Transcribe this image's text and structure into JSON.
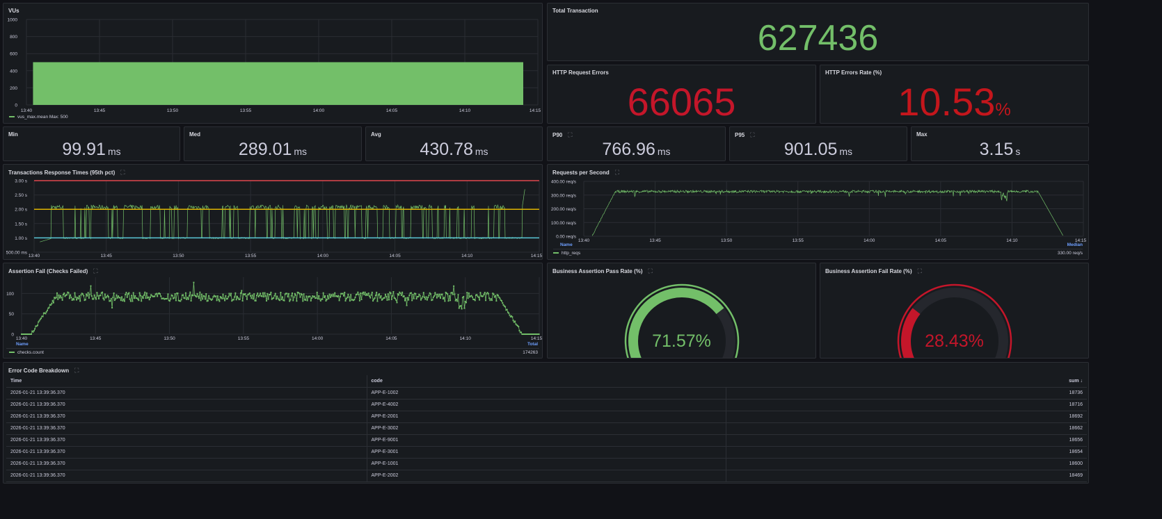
{
  "vus": {
    "title": "VUs",
    "yticks": [
      "1000",
      "800",
      "600",
      "400",
      "200",
      "0"
    ],
    "xticks": [
      "13:40",
      "13:45",
      "13:50",
      "13:55",
      "14:00",
      "14:05",
      "14:10",
      "14:15"
    ],
    "legend": "vus_max.mean  Max: 500",
    "color": "#73bf69"
  },
  "total_transaction": {
    "title": "Total Transaction",
    "value": "627436",
    "color": "#73bf69"
  },
  "http_request_errors": {
    "title": "HTTP Request Errors",
    "value": "66065",
    "color": "#c4162a"
  },
  "http_errors_rate": {
    "title": "HTTP Errors Rate (%)",
    "value": "10.53",
    "unit": "%",
    "color": "#c4161c"
  },
  "stats": [
    {
      "title": "Min",
      "value": "99.91",
      "unit": "ms"
    },
    {
      "title": "Med",
      "value": "289.01",
      "unit": "ms"
    },
    {
      "title": "Avg",
      "value": "430.78",
      "unit": "ms"
    },
    {
      "title": "P90",
      "value": "766.96",
      "unit": "ms"
    },
    {
      "title": "P95",
      "value": "901.05",
      "unit": "ms"
    },
    {
      "title": "Max",
      "value": "3.15",
      "unit": "s"
    }
  ],
  "response_times": {
    "title": "Transactions Response Times (95th pct)",
    "yticks": [
      "3.00 s",
      "2.50 s",
      "2.00 s",
      "1.50 s",
      "1.00 s",
      "500.00 ms"
    ],
    "xticks": [
      "13:40",
      "13:45",
      "13:50",
      "13:55",
      "14:00",
      "14:05",
      "14:10",
      "14:15"
    ],
    "thresholds": [
      {
        "value": 3,
        "color": "#e0474e"
      },
      {
        "value": 2,
        "color": "#e0b400"
      },
      {
        "value": 1,
        "color": "#5ac8d8"
      }
    ]
  },
  "rps": {
    "title": "Requests per Second",
    "yticks": [
      "400.00 req/s",
      "300.00 req/s",
      "200.00 req/s",
      "100.00 req/s",
      "0.00 req/s"
    ],
    "xticks": [
      "13:40",
      "13:45",
      "13:50",
      "13:55",
      "14:00",
      "14:05",
      "14:10",
      "14:15"
    ],
    "legend_header": "Name",
    "legend_calc": "Median",
    "legend_series": "http_reqs",
    "legend_value": "330.00 req/s"
  },
  "assertion_fail": {
    "title": "Assertion Fail (Checks Failed)",
    "yticks": [
      "100",
      "50",
      "0"
    ],
    "xticks": [
      "13:40",
      "13:45",
      "13:50",
      "13:55",
      "14:00",
      "14:05",
      "14:10",
      "14:15"
    ],
    "legend_header": "Name",
    "legend_calc": "Total",
    "legend_series": "checks.count",
    "legend_value": "174263"
  },
  "pass_rate": {
    "title": "Business Assertion Pass Rate (%)",
    "value": "71.57%",
    "percent": 71.57,
    "color": "#73bf69"
  },
  "fail_rate": {
    "title": "Business Assertion Fail Rate (%)",
    "value": "28.43%",
    "percent": 28.43,
    "color": "#c4162a"
  },
  "error_table": {
    "title": "Error Code Breakdown",
    "columns": [
      "Time",
      "code",
      "",
      "sum ↓"
    ],
    "rows": [
      [
        "2026-01-21 13:39:36.370",
        "APP-E-1002",
        "18736"
      ],
      [
        "2026-01-21 13:39:36.370",
        "APP-E-4002",
        "18716"
      ],
      [
        "2026-01-21 13:39:36.370",
        "APP-E-2001",
        "18692"
      ],
      [
        "2026-01-21 13:39:36.370",
        "APP-E-3002",
        "18662"
      ],
      [
        "2026-01-21 13:39:36.370",
        "APP-E-9001",
        "18656"
      ],
      [
        "2026-01-21 13:39:36.370",
        "APP-E-3001",
        "18654"
      ],
      [
        "2026-01-21 13:39:36.370",
        "APP-E-1001",
        "18600"
      ],
      [
        "2026-01-21 13:39:36.370",
        "APP-E-2002",
        "18469"
      ]
    ]
  }
}
